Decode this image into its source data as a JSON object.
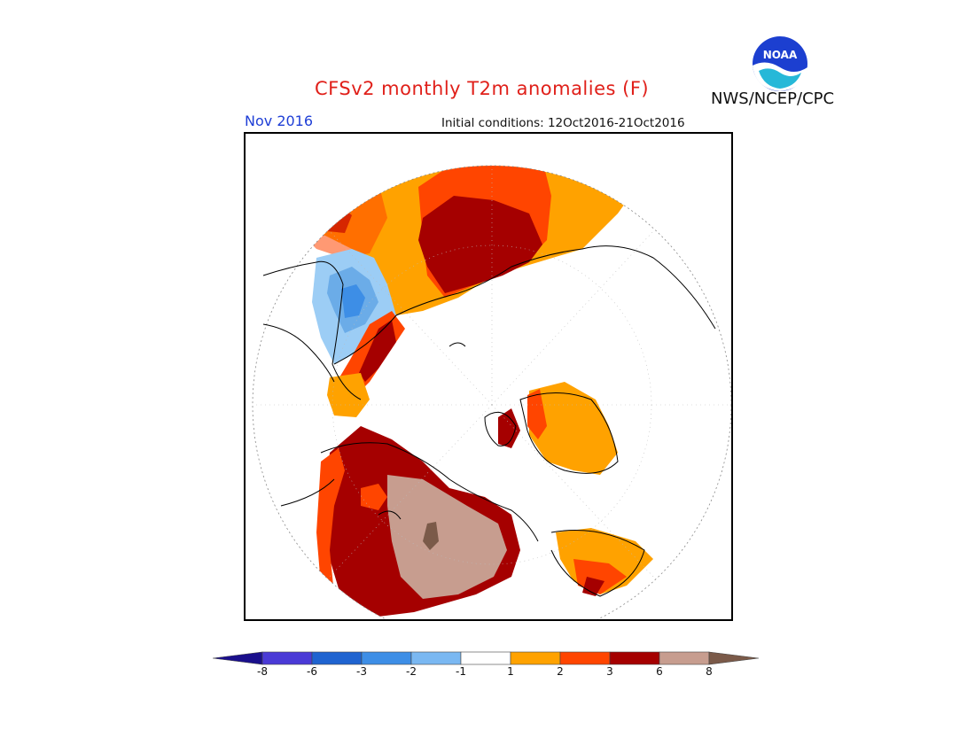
{
  "title": "CFSv2 monthly T2m anomalies (F)",
  "valid_month": "Nov 2016",
  "initial_conditions": "Initial conditions: 12Oct2016-21Oct2016",
  "agency": "NWS/NCEP/CPC",
  "logo_text": "NOAA",
  "projection": "north polar stereographic",
  "colorbar": {
    "tick_labels": [
      "-8",
      "-6",
      "-3",
      "-2",
      "-1",
      "1",
      "2",
      "3",
      "6",
      "8"
    ],
    "colors": [
      "#1a0f8c",
      "#4a3ad6",
      "#1f63d0",
      "#3d8ee6",
      "#7ab8f2",
      "#ffffff",
      "#ffa200",
      "#ff4500",
      "#a50000",
      "#c79d8f",
      "#7b5a49"
    ]
  },
  "map_colors": {
    "cold_light": "#9ccdf5",
    "cold_mid": "#6bace8",
    "cold_strong": "#3d8ee6",
    "warm_1": "#ffa200",
    "warm_2": "#ff4500",
    "warm_3": "#a50000",
    "warm_4": "#c79d8f",
    "warm_5": "#7b5a49",
    "coastline": "#000000",
    "grid": "#888888"
  }
}
